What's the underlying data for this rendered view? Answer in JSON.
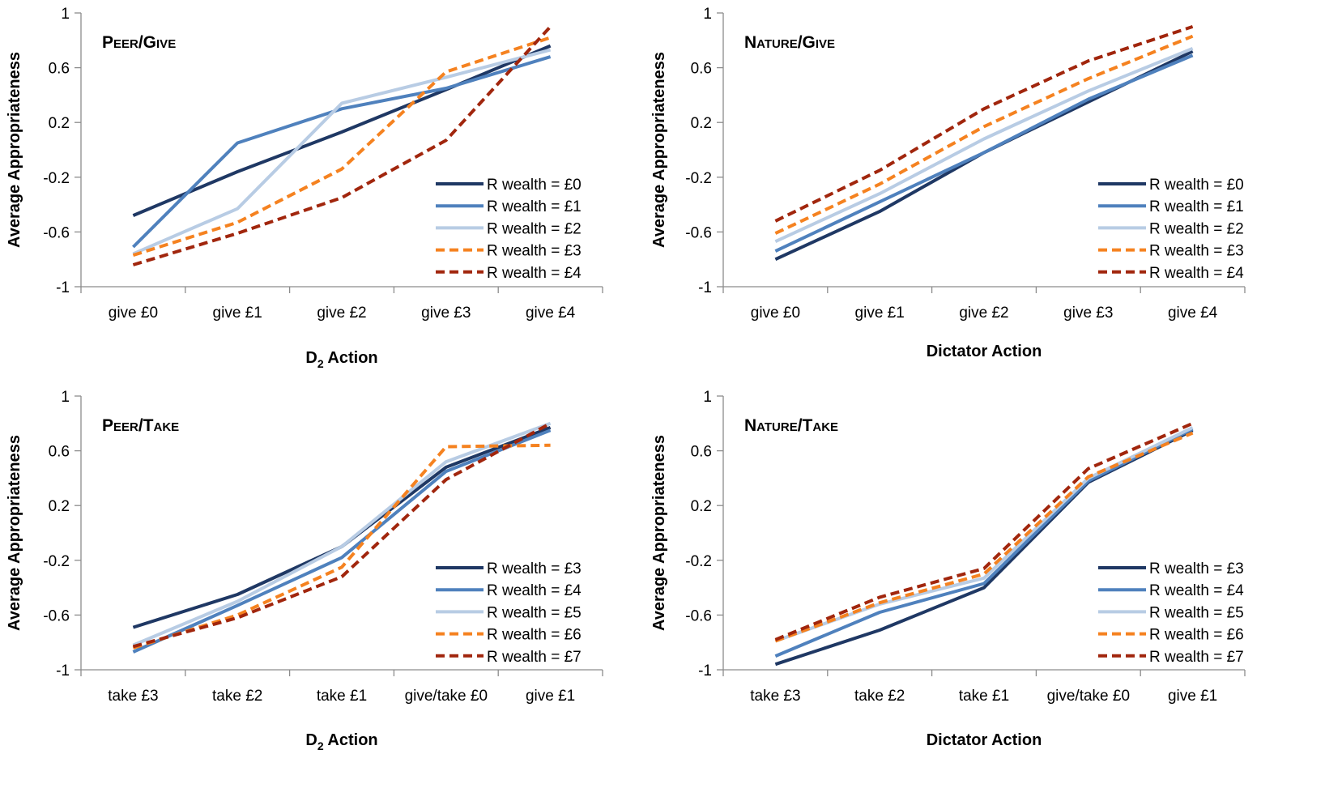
{
  "chart_data": [
    {
      "type": "line",
      "title": "Peer/Give",
      "xlabel": "D",
      "xlabel_sub": "2",
      "xlabel_rest": " Action",
      "ylabel": "Average Appropriateness",
      "ylim": [
        -1,
        1
      ],
      "yticks": [
        "1",
        "0.6",
        "0.2",
        "-0.2",
        "-0.6",
        "-1"
      ],
      "categories": [
        "give £0",
        "give £1",
        "give £2",
        "give £3",
        "give £4"
      ],
      "legend_position": "bottom-right",
      "series": [
        {
          "name": "R wealth = £0",
          "color": "#1f3864",
          "dash": false,
          "values": [
            -0.48,
            -0.16,
            0.13,
            0.44,
            0.76
          ]
        },
        {
          "name": "R wealth = £1",
          "color": "#4f81bd",
          "dash": false,
          "values": [
            -0.71,
            0.05,
            0.3,
            0.45,
            0.68
          ]
        },
        {
          "name": "R wealth = £2",
          "color": "#b8cce4",
          "dash": false,
          "values": [
            -0.76,
            -0.43,
            0.34,
            0.53,
            0.73
          ]
        },
        {
          "name": "R wealth = £3",
          "color": "#f58220",
          "dash": true,
          "values": [
            -0.77,
            -0.53,
            -0.14,
            0.57,
            0.82
          ]
        },
        {
          "name": "R wealth = £4",
          "color": "#a1260d",
          "dash": true,
          "values": [
            -0.84,
            -0.61,
            -0.35,
            0.07,
            0.9
          ]
        }
      ]
    },
    {
      "type": "line",
      "title": "Nature/Give",
      "xlabel": "Dictator Action",
      "ylabel": "Average Appropriateness",
      "ylim": [
        -1,
        1
      ],
      "yticks": [
        "1",
        "0.6",
        "0.2",
        "-0.2",
        "-0.6",
        "-1"
      ],
      "categories": [
        "give £0",
        "give £1",
        "give £2",
        "give £3",
        "give £4"
      ],
      "legend_position": "bottom-right",
      "series": [
        {
          "name": "R wealth = £0",
          "color": "#1f3864",
          "dash": false,
          "values": [
            -0.8,
            -0.45,
            -0.02,
            0.35,
            0.72
          ]
        },
        {
          "name": "R wealth = £1",
          "color": "#4f81bd",
          "dash": false,
          "values": [
            -0.74,
            -0.38,
            -0.02,
            0.37,
            0.69
          ]
        },
        {
          "name": "R wealth = £2",
          "color": "#b8cce4",
          "dash": false,
          "values": [
            -0.67,
            -0.32,
            0.08,
            0.43,
            0.74
          ]
        },
        {
          "name": "R wealth = £3",
          "color": "#f58220",
          "dash": true,
          "values": [
            -0.61,
            -0.25,
            0.17,
            0.52,
            0.83
          ]
        },
        {
          "name": "R wealth = £4",
          "color": "#a1260d",
          "dash": true,
          "values": [
            -0.52,
            -0.15,
            0.3,
            0.65,
            0.9
          ]
        }
      ]
    },
    {
      "type": "line",
      "title": "Peer/Take",
      "xlabel": "D",
      "xlabel_sub": "2",
      "xlabel_rest": " Action",
      "ylabel": "Average Appropriateness",
      "ylim": [
        -1,
        1
      ],
      "yticks": [
        "1",
        "0.6",
        "0.2",
        "-0.2",
        "-0.6",
        "-1"
      ],
      "categories": [
        "take £3",
        "take £2",
        "take £1",
        "give/take £0",
        "give £1"
      ],
      "legend_position": "bottom-right",
      "series": [
        {
          "name": "R wealth = £3",
          "color": "#1f3864",
          "dash": false,
          "values": [
            -0.69,
            -0.45,
            -0.1,
            0.48,
            0.77
          ]
        },
        {
          "name": "R wealth = £4",
          "color": "#4f81bd",
          "dash": false,
          "values": [
            -0.87,
            -0.53,
            -0.18,
            0.45,
            0.75
          ]
        },
        {
          "name": "R wealth = £5",
          "color": "#b8cce4",
          "dash": false,
          "values": [
            -0.82,
            -0.5,
            -0.1,
            0.52,
            0.8
          ]
        },
        {
          "name": "R wealth = £6",
          "color": "#f58220",
          "dash": true,
          "values": [
            -0.84,
            -0.6,
            -0.25,
            0.63,
            0.64
          ]
        },
        {
          "name": "R wealth = £7",
          "color": "#a1260d",
          "dash": true,
          "values": [
            -0.83,
            -0.62,
            -0.32,
            0.39,
            0.8
          ]
        }
      ]
    },
    {
      "type": "line",
      "title": "Nature/Take",
      "xlabel": "Dictator Action",
      "ylabel": "Average Appropriateness",
      "ylim": [
        -1,
        1
      ],
      "yticks": [
        "1",
        "0.6",
        "0.2",
        "-0.2",
        "-0.6",
        "-1"
      ],
      "categories": [
        "take £3",
        "take £2",
        "take £1",
        "give/take £0",
        "give £1"
      ],
      "legend_position": "bottom-right",
      "series": [
        {
          "name": "R wealth = £3",
          "color": "#1f3864",
          "dash": false,
          "values": [
            -0.96,
            -0.71,
            -0.4,
            0.37,
            0.75
          ]
        },
        {
          "name": "R wealth = £4",
          "color": "#4f81bd",
          "dash": false,
          "values": [
            -0.9,
            -0.58,
            -0.37,
            0.38,
            0.76
          ]
        },
        {
          "name": "R wealth = £5",
          "color": "#b8cce4",
          "dash": false,
          "values": [
            -0.79,
            -0.52,
            -0.33,
            0.4,
            0.77
          ]
        },
        {
          "name": "R wealth = £6",
          "color": "#f58220",
          "dash": true,
          "values": [
            -0.79,
            -0.51,
            -0.3,
            0.41,
            0.73
          ]
        },
        {
          "name": "R wealth = £7",
          "color": "#a1260d",
          "dash": true,
          "values": [
            -0.78,
            -0.47,
            -0.26,
            0.47,
            0.8
          ]
        }
      ]
    }
  ]
}
